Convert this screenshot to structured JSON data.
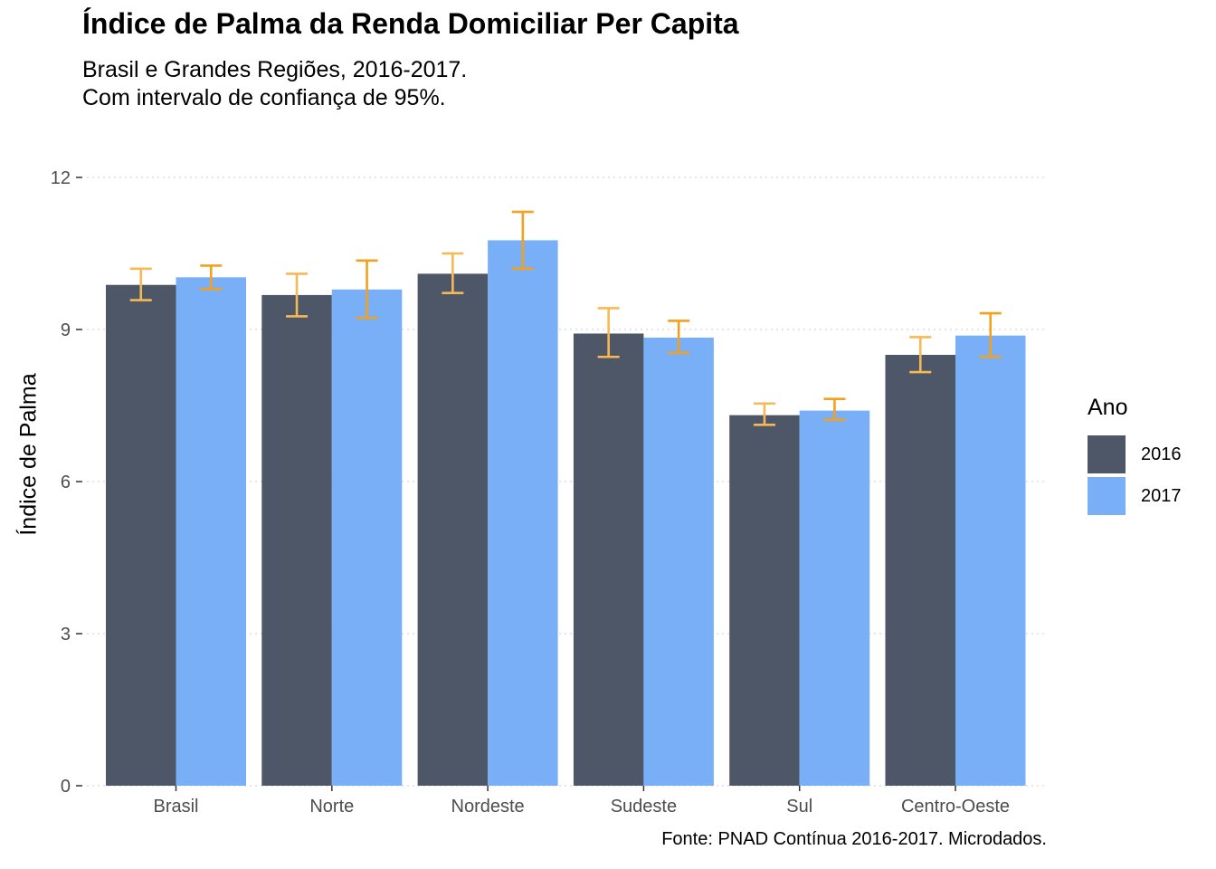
{
  "title": "Índice de Palma da Renda Domiciliar Per Capita",
  "subtitle": "Brasil e Grandes Regiões, 2016-2017.\nCom intervalo de confiança de 95%.",
  "caption": "Fonte: PNAD Contínua 2016-2017. Microdados.",
  "legend": {
    "title": "Ano",
    "items": [
      {
        "label": "2016",
        "color": "#4e5767"
      },
      {
        "label": "2017",
        "color": "#78aff6"
      }
    ]
  },
  "chart_data": {
    "type": "bar",
    "title": "Índice de Palma da Renda Domiciliar Per Capita",
    "subtitle": "Brasil e Grandes Regiões, 2016-2017. Com intervalo de confiança de 95%.",
    "xlabel": "",
    "ylabel": "Índice de Palma",
    "ylim": [
      0,
      12
    ],
    "yticks": [
      0,
      3,
      6,
      9,
      12
    ],
    "grid": true,
    "legend_position": "right",
    "categories": [
      "Brasil",
      "Norte",
      "Nordeste",
      "Sudeste",
      "Sul",
      "Centro-Oeste"
    ],
    "series": [
      {
        "name": "2016",
        "color": "#4e5767",
        "values": [
          9.88,
          9.68,
          10.1,
          8.92,
          7.31,
          8.5
        ],
        "ci_lower": [
          9.58,
          9.26,
          9.72,
          8.46,
          7.12,
          8.16
        ],
        "ci_upper": [
          10.2,
          10.1,
          10.5,
          9.42,
          7.54,
          8.85
        ]
      },
      {
        "name": "2017",
        "color": "#78aff6",
        "values": [
          10.03,
          9.79,
          10.76,
          8.84,
          7.4,
          8.88
        ],
        "ci_lower": [
          9.8,
          9.23,
          10.2,
          8.54,
          7.22,
          8.46
        ],
        "ci_upper": [
          10.26,
          10.36,
          11.32,
          9.17,
          7.63,
          9.32
        ]
      }
    ],
    "errorbar_colors": {
      "2016": "#f7b955",
      "2017": "#f3a01e"
    },
    "gridline_color": "#cccccc",
    "tick_label_color": "#4d4d4d"
  }
}
